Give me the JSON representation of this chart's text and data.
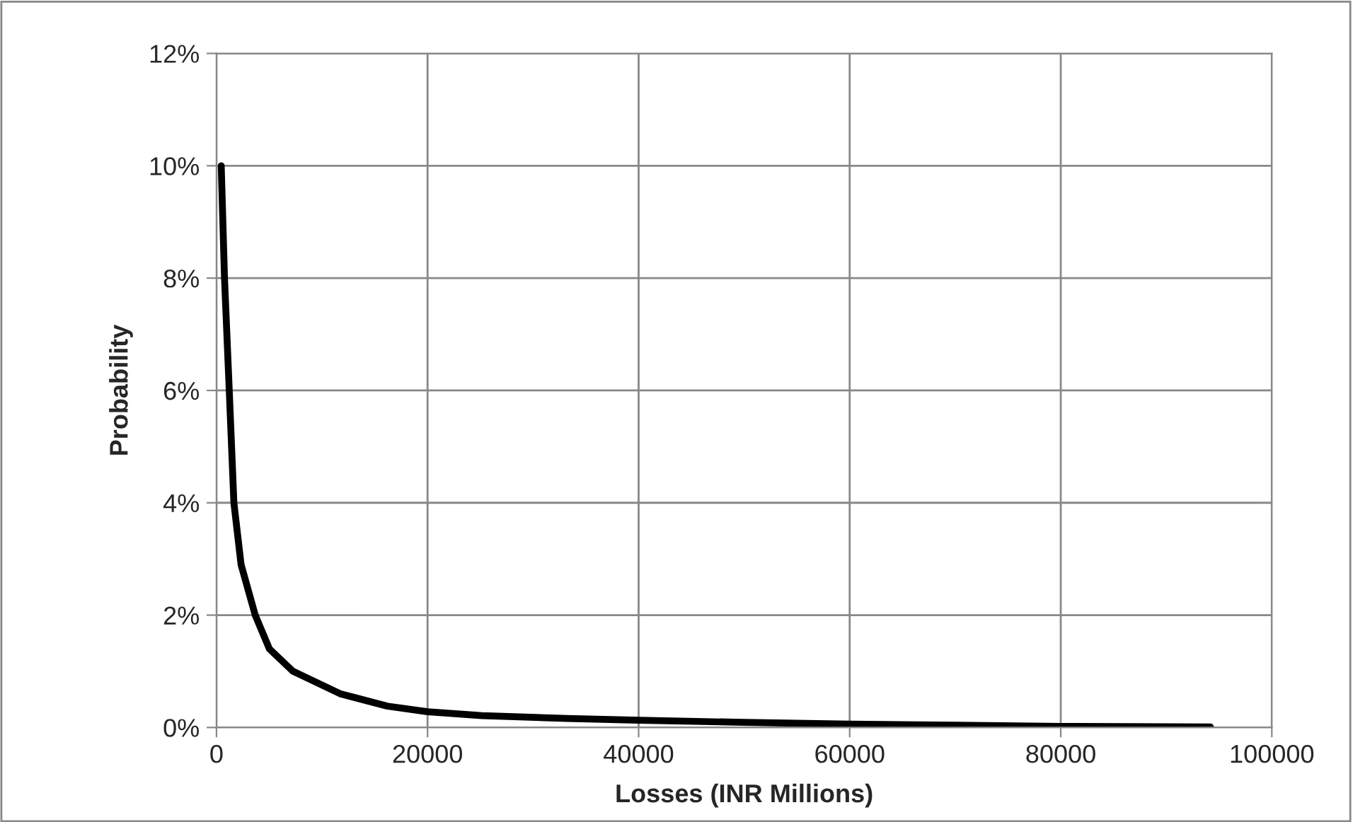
{
  "chart_data": {
    "type": "line",
    "xlabel": "Losses (INR Millions)",
    "ylabel": "Probability",
    "x": [
      450,
      760,
      1210,
      1650,
      2330,
      3670,
      5010,
      7250,
      11720,
      16200,
      20000,
      25140,
      33200,
      40000,
      50000,
      60000,
      70000,
      80000,
      94180
    ],
    "series": [
      {
        "color": "#000000",
        "values": [
          10,
          8,
          6,
          4,
          2.9,
          2.0,
          1.4,
          1.0,
          0.6,
          0.38,
          0.28,
          0.21,
          0.16,
          0.13,
          0.09,
          0.06,
          0.04,
          0.02,
          0.01
        ]
      }
    ],
    "xlim": [
      0,
      100000
    ],
    "xticks": [
      0,
      20000,
      40000,
      60000,
      80000,
      100000
    ],
    "ylim": [
      0,
      12
    ],
    "yticks": [
      {
        "value": 0,
        "label": "0%"
      },
      {
        "value": 2,
        "label": "2%"
      },
      {
        "value": 4,
        "label": "4%"
      },
      {
        "value": 6,
        "label": "6%"
      },
      {
        "value": 8,
        "label": "8%"
      },
      {
        "value": 10,
        "label": "10%"
      },
      {
        "value": 12,
        "label": "12%"
      }
    ],
    "grid": true,
    "marker": "none",
    "line_style": "solid"
  }
}
